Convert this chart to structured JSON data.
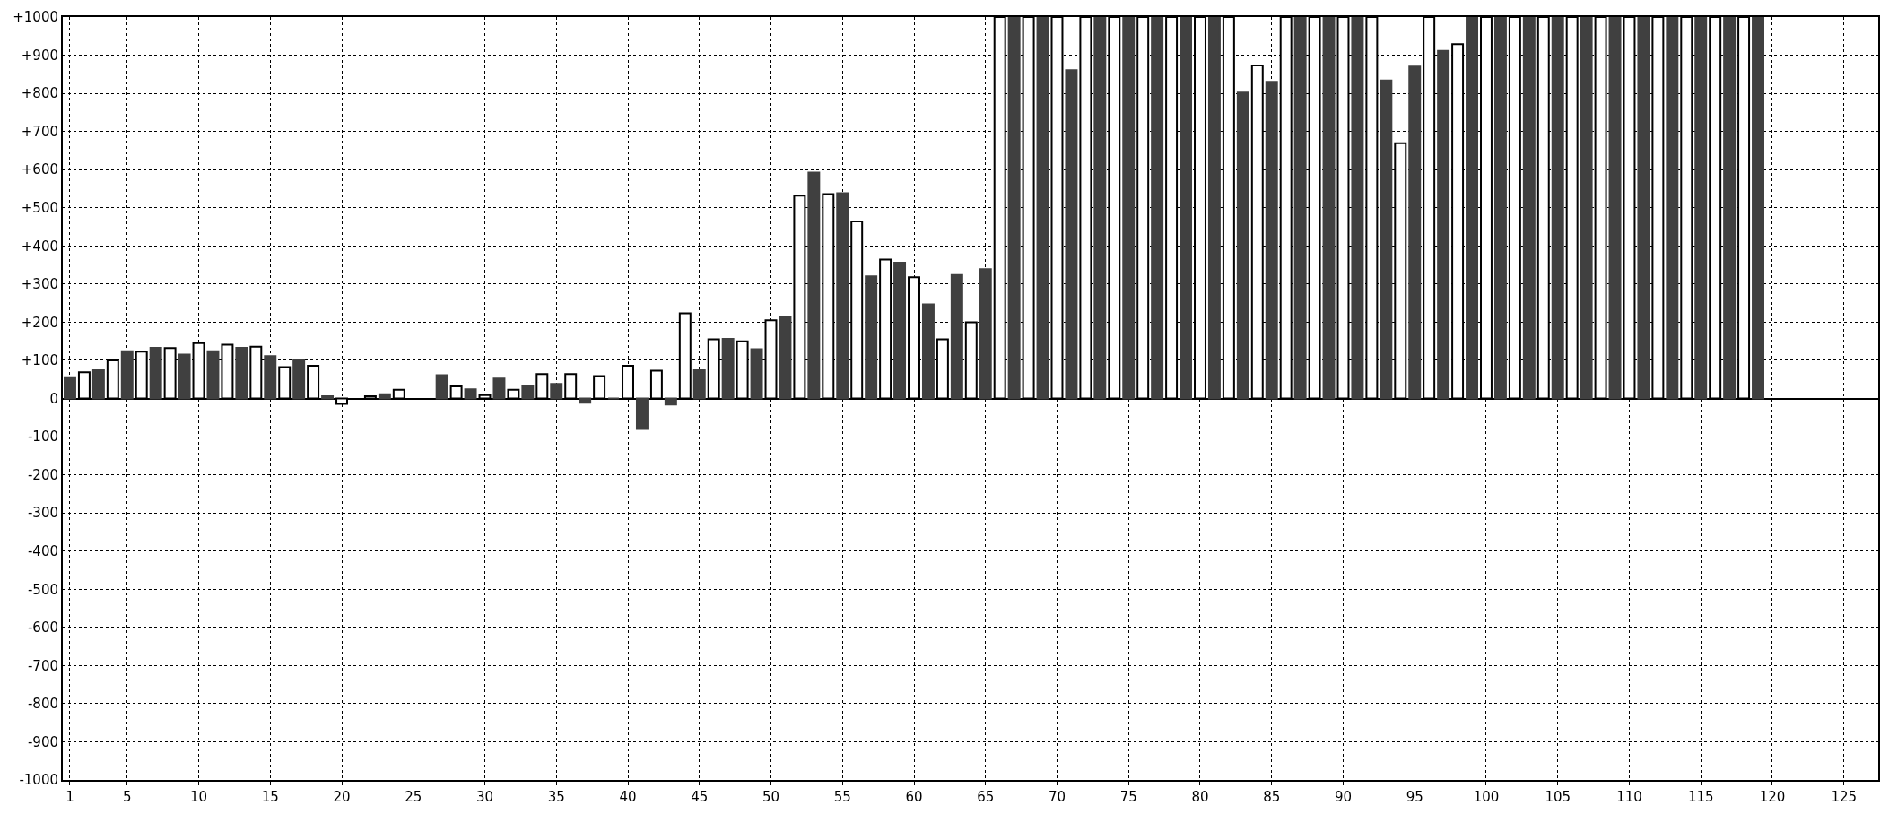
{
  "chart_data": {
    "type": "bar",
    "x": [
      1,
      2,
      3,
      4,
      5,
      6,
      7,
      8,
      9,
      10,
      11,
      12,
      13,
      14,
      15,
      16,
      17,
      18,
      19,
      20,
      21,
      22,
      23,
      24,
      25,
      26,
      27,
      28,
      29,
      30,
      31,
      32,
      33,
      34,
      35,
      36,
      37,
      38,
      39,
      40,
      41,
      42,
      43,
      44,
      45,
      46,
      47,
      48,
      49,
      50,
      51,
      52,
      53,
      54,
      55,
      56,
      57,
      58,
      59,
      60,
      61,
      62,
      63,
      64,
      65,
      66,
      67,
      68,
      69,
      70,
      71,
      72,
      73,
      74,
      75,
      76,
      77,
      78,
      79,
      80,
      81,
      82,
      83,
      84,
      85,
      86,
      87,
      88,
      89,
      90,
      91,
      92,
      93,
      94,
      95,
      96,
      97,
      98,
      99,
      100,
      101,
      102,
      103,
      104,
      105,
      106,
      107,
      108,
      109,
      110,
      111,
      112,
      113,
      114,
      115,
      116,
      117,
      118,
      119
    ],
    "values": [
      56,
      69,
      74,
      100,
      124,
      123,
      133,
      132,
      115,
      145,
      124,
      141,
      133,
      136,
      111,
      82,
      102,
      86,
      6,
      -14,
      null,
      6,
      11,
      23,
      null,
      null,
      61,
      32,
      24,
      9,
      52,
      23,
      33,
      64,
      38,
      64,
      -11,
      59,
      0,
      86,
      -80,
      73,
      -16,
      223,
      74,
      155,
      156,
      150,
      129,
      205,
      215,
      532,
      592,
      536,
      538,
      464,
      320,
      364,
      356,
      318,
      247,
      155,
      324,
      200,
      339,
      1000,
      1000,
      1000,
      1000,
      1000,
      861,
      1000,
      1000,
      1000,
      1000,
      1000,
      1000,
      1000,
      1000,
      1000,
      1000,
      1000,
      802,
      873,
      830,
      1000,
      1000,
      1000,
      1000,
      1000,
      1000,
      1000,
      834,
      669,
      870,
      1000,
      911,
      929,
      1000,
      1000,
      1000,
      1000,
      1000,
      1000,
      1000,
      1000,
      1000,
      1000,
      1000,
      1000,
      1000,
      1000,
      1000,
      1000,
      1000,
      1000,
      1000,
      1000,
      1000
    ],
    "colors": [
      "#404040",
      "#ffffff",
      "#404040",
      "#ffffff",
      "#404040",
      "#ffffff",
      "#404040",
      "#ffffff",
      "#404040",
      "#ffffff",
      "#404040",
      "#ffffff",
      "#404040",
      "#ffffff",
      "#404040",
      "#ffffff",
      "#404040",
      "#ffffff",
      "#404040",
      "#ffffff",
      "#404040",
      "#ffffff",
      "#404040",
      "#ffffff",
      "#404040",
      "#ffffff",
      "#404040",
      "#ffffff",
      "#404040",
      "#ffffff",
      "#404040",
      "#ffffff",
      "#404040",
      "#ffffff",
      "#404040",
      "#ffffff",
      "#404040",
      "#ffffff",
      "#404040",
      "#ffffff",
      "#404040",
      "#ffffff",
      "#404040",
      "#ffffff",
      "#404040",
      "#ffffff",
      "#404040",
      "#ffffff",
      "#404040",
      "#ffffff",
      "#404040",
      "#ffffff",
      "#404040",
      "#ffffff",
      "#404040",
      "#ffffff",
      "#404040",
      "#ffffff",
      "#404040",
      "#ffffff",
      "#404040",
      "#ffffff",
      "#404040",
      "#ffffff",
      "#404040",
      "#ffffff",
      "#404040",
      "#ffffff",
      "#404040",
      "#ffffff",
      "#404040",
      "#ffffff",
      "#404040",
      "#ffffff",
      "#404040",
      "#ffffff",
      "#404040",
      "#ffffff",
      "#404040",
      "#ffffff",
      "#404040",
      "#ffffff",
      "#404040",
      "#ffffff",
      "#404040",
      "#ffffff",
      "#404040",
      "#ffffff",
      "#404040",
      "#ffffff",
      "#404040",
      "#ffffff",
      "#404040",
      "#ffffff",
      "#404040",
      "#ffffff",
      "#404040",
      "#ffffff",
      "#404040",
      "#ffffff",
      "#404040",
      "#ffffff",
      "#404040",
      "#ffffff",
      "#404040",
      "#ffffff",
      "#404040",
      "#ffffff",
      "#404040",
      "#ffffff",
      "#404040",
      "#ffffff",
      "#404040",
      "#ffffff",
      "#404040",
      "#ffffff",
      "#404040",
      "#ffffff",
      "#404040"
    ],
    "xlim": [
      0.5,
      127.4
    ],
    "xticks": [
      1,
      5,
      10,
      15,
      20,
      25,
      30,
      35,
      40,
      45,
      50,
      55,
      60,
      65,
      70,
      75,
      80,
      85,
      90,
      95,
      100,
      105,
      110,
      115,
      120,
      125
    ],
    "ylim": [
      -1000,
      1000
    ],
    "yticks": [
      {
        "value": -1000,
        "label": "-1000"
      },
      {
        "value": -900,
        "label": "-900"
      },
      {
        "value": -800,
        "label": "-800"
      },
      {
        "value": -700,
        "label": "-700"
      },
      {
        "value": -600,
        "label": "-600"
      },
      {
        "value": -500,
        "label": "-500"
      },
      {
        "value": -400,
        "label": "-400"
      },
      {
        "value": -300,
        "label": "-300"
      },
      {
        "value": -200,
        "label": "-200"
      },
      {
        "value": -100,
        "label": "-100"
      },
      0,
      {
        "value": 100,
        "label": "+100"
      },
      {
        "value": 200,
        "label": "+200"
      },
      {
        "value": 300,
        "label": "+300"
      },
      {
        "value": 400,
        "label": "+400"
      },
      {
        "value": 500,
        "label": "+500"
      },
      {
        "value": 600,
        "label": "+600"
      },
      {
        "value": 700,
        "label": "+700"
      },
      {
        "value": 800,
        "label": "+800"
      },
      {
        "value": 900,
        "label": "+900"
      },
      {
        "value": 1000,
        "label": "+1000"
      }
    ],
    "grid": true
  }
}
